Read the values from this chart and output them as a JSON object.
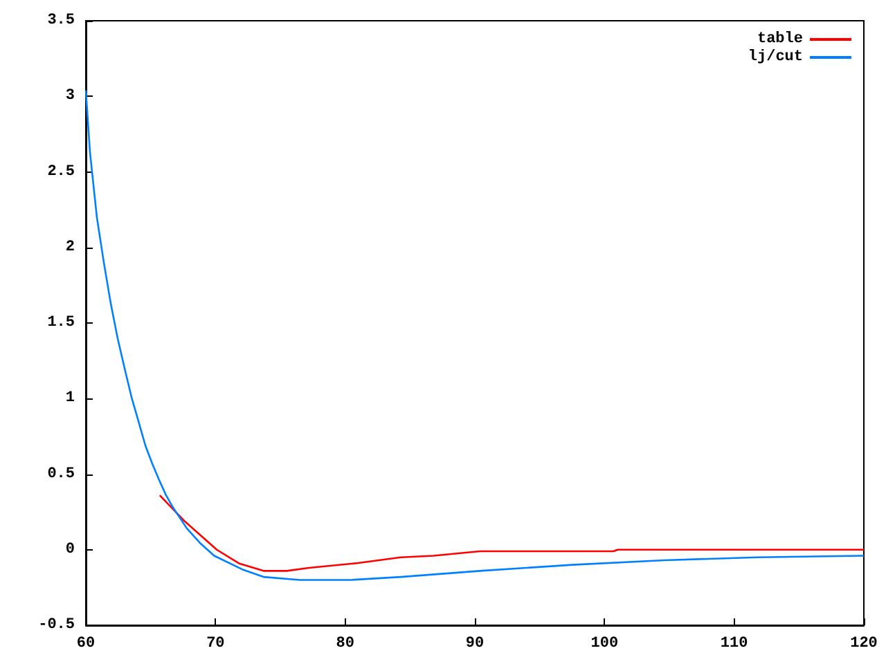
{
  "chart_data": {
    "type": "line",
    "xlim": [
      60,
      120
    ],
    "xticks": [
      60,
      70,
      80,
      90,
      100,
      110,
      120
    ],
    "ylim": [
      -0.5,
      3.5
    ],
    "yticks": [
      -0.5,
      0,
      0.5,
      1,
      1.5,
      2,
      2.5,
      3,
      3.5
    ],
    "grid": false,
    "legend": "top right",
    "marker": "none",
    "line_style": "solid",
    "series": [
      {
        "name": "table",
        "color": "#ff0000",
        "x": [
          65.7,
          67.6,
          70.1,
          71.8,
          73.7,
          75.5,
          77.2,
          80.8,
          84.3,
          86.8,
          90.4,
          100.7,
          101,
          120
        ],
        "values": [
          0.36,
          0.19,
          0.0,
          -0.09,
          -0.14,
          -0.14,
          -0.12,
          -0.09,
          -0.05,
          -0.04,
          -0.01,
          -0.01,
          0,
          0
        ]
      },
      {
        "name": "lj/cut",
        "color": "#0080ff",
        "x": [
          60,
          60.32,
          60.85,
          61.39,
          61.92,
          62.45,
          62.99,
          63.52,
          64.06,
          64.59,
          65.12,
          65.66,
          66.19,
          66.72,
          67.26,
          67.8,
          68.86,
          69.9,
          72.06,
          73.7,
          76.5,
          80.4,
          84.3,
          90.4,
          97.5,
          104.6,
          111.8,
          119.8,
          120
        ],
        "values": [
          3.04,
          2.63,
          2.2,
          1.9,
          1.63,
          1.4,
          1.2,
          1.01,
          0.85,
          0.69,
          0.57,
          0.46,
          0.36,
          0.28,
          0.21,
          0.14,
          0.04,
          -0.04,
          -0.13,
          -0.18,
          -0.2,
          -0.2,
          -0.18,
          -0.14,
          -0.1,
          -0.07,
          -0.05,
          -0.04,
          -0.04
        ]
      }
    ]
  }
}
